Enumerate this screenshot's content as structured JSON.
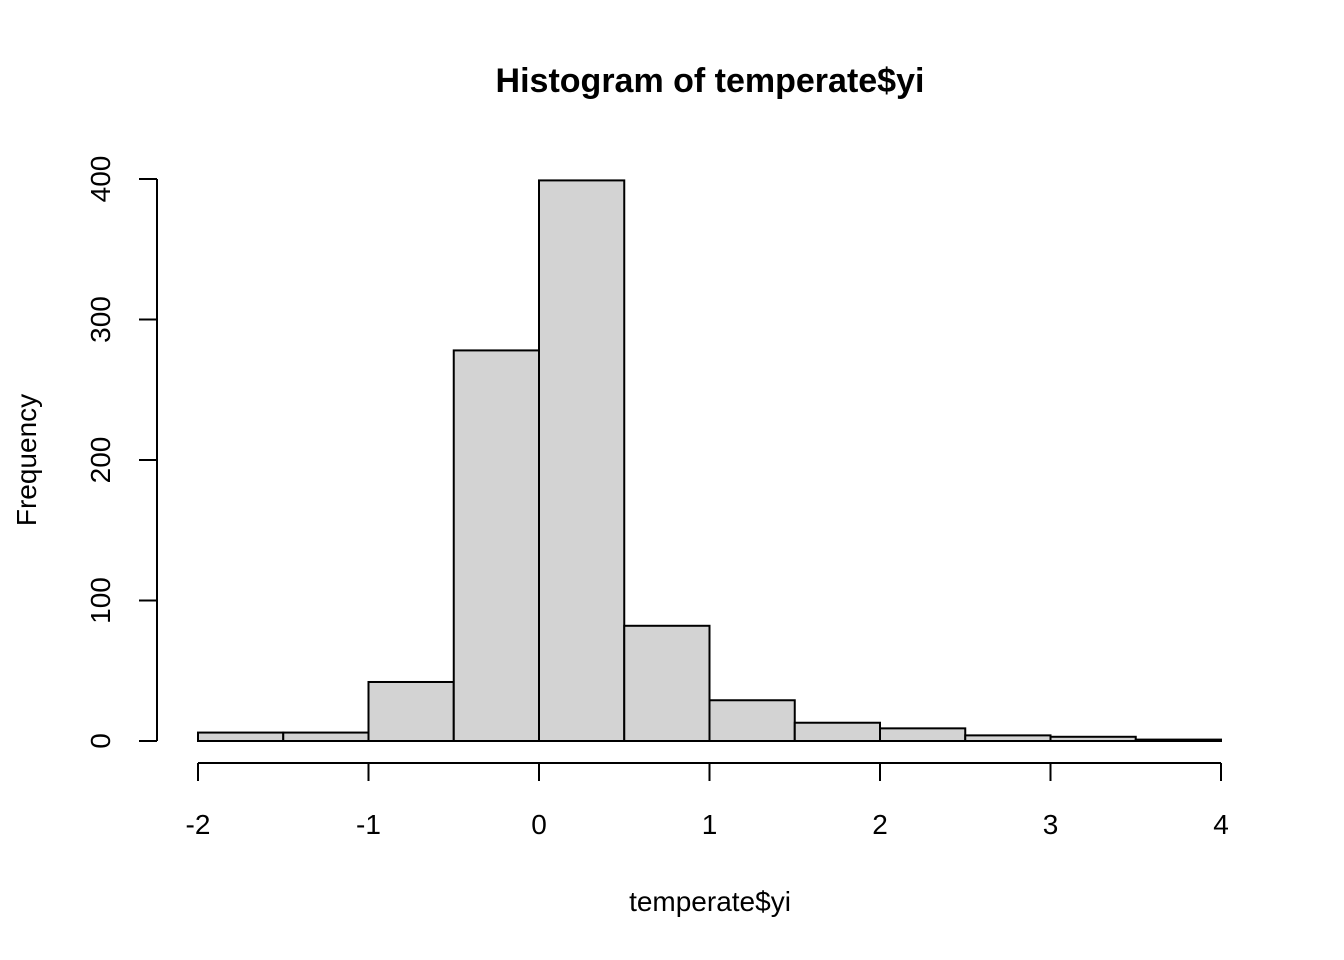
{
  "chart_data": {
    "type": "bar",
    "title": "Histogram of temperate$yi",
    "xlabel": "temperate$yi",
    "ylabel": "Frequency",
    "bins": [
      {
        "start": -2.0,
        "end": -1.5,
        "count": 6
      },
      {
        "start": -1.5,
        "end": -1.0,
        "count": 6
      },
      {
        "start": -1.0,
        "end": -0.5,
        "count": 42
      },
      {
        "start": -0.5,
        "end": 0.0,
        "count": 278
      },
      {
        "start": 0.0,
        "end": 0.5,
        "count": 399
      },
      {
        "start": 0.5,
        "end": 1.0,
        "count": 82
      },
      {
        "start": 1.0,
        "end": 1.5,
        "count": 29
      },
      {
        "start": 1.5,
        "end": 2.0,
        "count": 13
      },
      {
        "start": 2.0,
        "end": 2.5,
        "count": 9
      },
      {
        "start": 2.5,
        "end": 3.0,
        "count": 4
      },
      {
        "start": 3.0,
        "end": 3.5,
        "count": 3
      },
      {
        "start": 3.5,
        "end": 4.0,
        "count": 1
      }
    ],
    "xlim": [
      -2,
      4
    ],
    "ylim": [
      0,
      400
    ],
    "x_ticks": [
      -2,
      -1,
      0,
      1,
      2,
      3,
      4
    ],
    "y_ticks": [
      0,
      100,
      200,
      300,
      400
    ],
    "bar_fill": "#d3d3d3",
    "bar_stroke": "#000000",
    "grid": false,
    "legend": "none"
  }
}
